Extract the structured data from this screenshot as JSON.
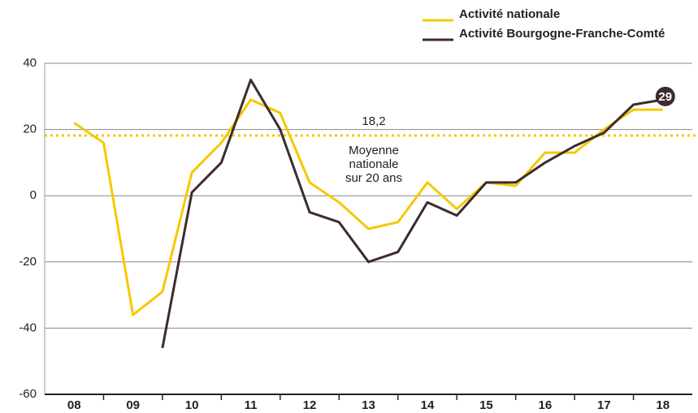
{
  "chart_data": {
    "type": "line",
    "categories": [
      "08",
      null,
      "09",
      null,
      "10",
      null,
      "11",
      null,
      "12",
      null,
      "13",
      null,
      "14",
      null,
      "15",
      null,
      "16",
      null,
      "17",
      null,
      "18"
    ],
    "series": [
      {
        "name": "Activité nationale",
        "color": "#f5c800",
        "values": [
          22,
          16,
          -36,
          -29,
          7,
          16,
          29,
          25,
          4,
          -2,
          -10,
          -8,
          4,
          -4,
          4,
          3,
          13,
          13,
          20,
          26,
          26
        ]
      },
      {
        "name": "Activité Bourgogne-Franche-Comté",
        "color": "#3d2b2e",
        "values": [
          null,
          null,
          null,
          -46,
          1,
          10,
          35,
          20,
          -5,
          -8,
          -20,
          -17,
          -2,
          -6,
          4,
          4,
          10,
          15,
          19,
          27.5,
          29
        ]
      }
    ],
    "reference_line": {
      "value": 18.2,
      "label": "18,2",
      "color": "#f5c800"
    },
    "annotation_lines": [
      "Moyenne",
      "nationale",
      "sur 20 ans"
    ],
    "ylim": [
      -60,
      40
    ],
    "yticks": [
      -60,
      -40,
      -20,
      0,
      20,
      40
    ],
    "grid": true,
    "legend": "top-right"
  }
}
